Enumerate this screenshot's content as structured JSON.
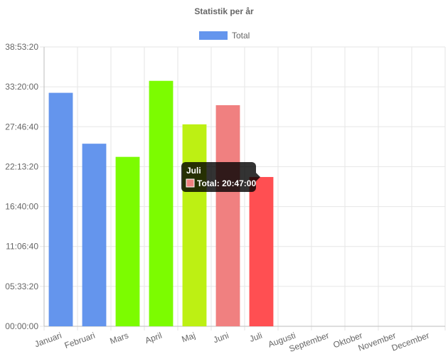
{
  "chart_data": {
    "type": "bar",
    "title": "Statistik per år",
    "legend": {
      "placement": "top-center",
      "entries": [
        {
          "label": "Total",
          "color": "#6495ED"
        }
      ]
    },
    "grid": true,
    "ylim_seconds": [
      0,
      140000
    ],
    "y_ticks": [
      "00:00:00",
      "05:33:20",
      "11:06:40",
      "16:40:00",
      "22:13:20",
      "27:46:40",
      "33:20:00",
      "38:53:20"
    ],
    "categories": [
      "Januari",
      "Februari",
      "Mars",
      "April",
      "Maj",
      "Juni",
      "Juli",
      "Augusti",
      "September",
      "Oktober",
      "November",
      "December"
    ],
    "series": [
      {
        "name": "Total",
        "values_seconds": [
          117000,
          91500,
          84900,
          123000,
          101200,
          110800,
          74820,
          0,
          0,
          0,
          0,
          0
        ],
        "colors": [
          "#6495ED",
          "#6495ED",
          "#7CFC00",
          "#7CFC00",
          "#BDF013",
          "#F08080",
          "#FF4F52",
          "#6495ED",
          "#6495ED",
          "#6495ED",
          "#6495ED",
          "#6495ED"
        ]
      }
    ],
    "tooltip": {
      "title": "Juli",
      "label": "Total: 20:47:00",
      "swatch_color": "#F08080"
    }
  }
}
